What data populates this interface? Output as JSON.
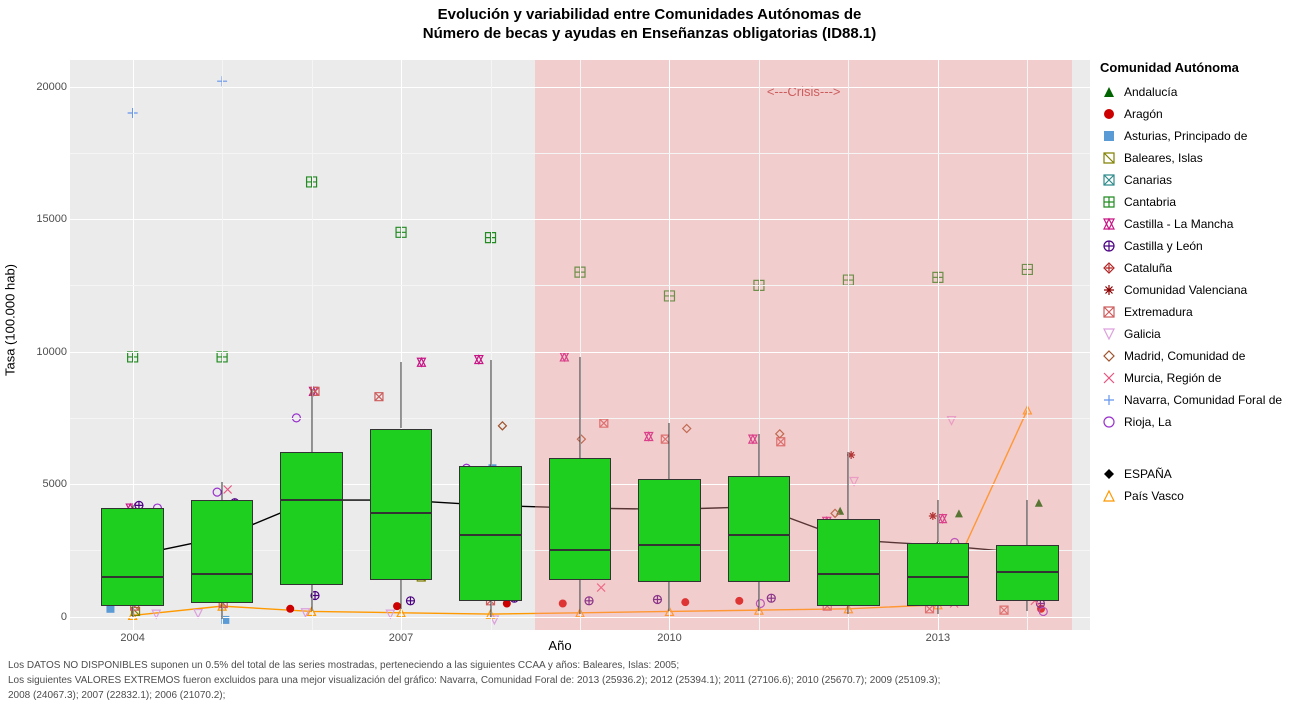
{
  "title_line1": "Evolución y variabilidad entre Comunidades Autónomas de",
  "title_line2": "Número de becas y ayudas en Enseñanzas obligatorias (ID88.1)",
  "y_axis_label": "Tasa (100.000 hab)",
  "x_axis_label": "Año",
  "chart": {
    "type": "boxplot",
    "background": "#ebebeb",
    "grid_major": "#ffffff",
    "grid_minor": "#f5f5f5",
    "ylim": [
      -500,
      21000
    ],
    "xlim": [
      2003.3,
      2014.7
    ],
    "y_ticks": [
      0,
      5000,
      10000,
      15000,
      20000
    ],
    "x_ticks": [
      2004,
      2007,
      2010,
      2013
    ],
    "box_fill": "#1fcf1f",
    "crisis_band": {
      "from": 2008.5,
      "to": 2014.5,
      "color": "rgba(255,150,150,0.35)",
      "label": "<---Crisis--->"
    },
    "years": [
      2004,
      2005,
      2006,
      2007,
      2008,
      2009,
      2010,
      2011,
      2012,
      2013,
      2014
    ],
    "boxes": [
      {
        "year": 2004,
        "q1": 400,
        "median": 1500,
        "q3": 4100,
        "wlo": 0,
        "whi": 4200
      },
      {
        "year": 2005,
        "q1": 500,
        "median": 1600,
        "q3": 4400,
        "wlo": -100,
        "whi": 5100
      },
      {
        "year": 2006,
        "q1": 1200,
        "median": 4400,
        "q3": 6200,
        "wlo": 200,
        "whi": 8600
      },
      {
        "year": 2007,
        "q1": 1400,
        "median": 3900,
        "q3": 7100,
        "wlo": 300,
        "whi": 9600
      },
      {
        "year": 2008,
        "q1": 600,
        "median": 3100,
        "q3": 5700,
        "wlo": 0,
        "whi": 9700
      },
      {
        "year": 2009,
        "q1": 1400,
        "median": 2500,
        "q3": 6000,
        "wlo": 100,
        "whi": 9800
      },
      {
        "year": 2010,
        "q1": 1300,
        "median": 2700,
        "q3": 5200,
        "wlo": 200,
        "whi": 7300
      },
      {
        "year": 2011,
        "q1": 1300,
        "median": 3100,
        "q3": 5300,
        "wlo": 200,
        "whi": 6900
      },
      {
        "year": 2012,
        "q1": 400,
        "median": 1600,
        "q3": 3700,
        "wlo": 100,
        "whi": 6200
      },
      {
        "year": 2013,
        "q1": 400,
        "median": 1500,
        "q3": 2800,
        "wlo": 100,
        "whi": 4400
      },
      {
        "year": 2014,
        "q1": 600,
        "median": 1700,
        "q3": 2700,
        "wlo": 200,
        "whi": 4400
      }
    ],
    "espana_line": {
      "color": "#000000",
      "points": [
        [
          2004,
          2300
        ],
        [
          2005,
          3000
        ],
        [
          2006,
          4400
        ],
        [
          2007,
          4400
        ],
        [
          2008,
          4200
        ],
        [
          2009,
          4100
        ],
        [
          2010,
          4050
        ],
        [
          2011,
          4150
        ],
        [
          2012,
          2900
        ],
        [
          2013,
          2700
        ],
        [
          2014,
          2400
        ]
      ]
    },
    "pais_vasco_line": {
      "color": "#ff9900",
      "points": [
        [
          2004,
          50
        ],
        [
          2005,
          400
        ],
        [
          2006,
          200
        ],
        [
          2007,
          150
        ],
        [
          2008,
          100
        ],
        [
          2009,
          150
        ],
        [
          2010,
          200
        ],
        [
          2011,
          250
        ],
        [
          2012,
          300
        ],
        [
          2013,
          450
        ],
        [
          2014,
          7800
        ]
      ]
    },
    "outliers_extra": [
      {
        "year": 2004,
        "y": 19000,
        "key": "navarra"
      },
      {
        "year": 2004,
        "y": 9800,
        "key": "cantabria"
      },
      {
        "year": 2005,
        "y": 20200,
        "key": "navarra"
      },
      {
        "year": 2005,
        "y": 9800,
        "key": "cantabria"
      },
      {
        "year": 2006,
        "y": 16400,
        "key": "cantabria"
      },
      {
        "year": 2007,
        "y": 14500,
        "key": "cantabria"
      },
      {
        "year": 2008,
        "y": 14300,
        "key": "cantabria"
      },
      {
        "year": 2009,
        "y": 13000,
        "key": "cantabria"
      },
      {
        "year": 2010,
        "y": 12100,
        "key": "cantabria"
      },
      {
        "year": 2011,
        "y": 12500,
        "key": "cantabria"
      },
      {
        "year": 2012,
        "y": 12700,
        "key": "cantabria"
      },
      {
        "year": 2013,
        "y": 12800,
        "key": "cantabria"
      },
      {
        "year": 2014,
        "y": 13100,
        "key": "cantabria"
      }
    ],
    "jitter_series": {
      "andalucia": [
        2300,
        2400,
        5800,
        6000,
        4700,
        4500,
        4600,
        4700,
        4000,
        3900,
        4300
      ],
      "aragon": [
        800,
        700,
        300,
        400,
        500,
        500,
        550,
        600,
        2200,
        700,
        300
      ],
      "asturias": [
        300,
        -120,
        4800,
        5800,
        5600,
        5700,
        2900,
        1800,
        1900,
        2000,
        1800
      ],
      "baleares": [
        200,
        null,
        1700,
        1500,
        1800,
        2300,
        2900,
        3000,
        1300,
        1200,
        900
      ],
      "canarias": [
        1800,
        1700,
        2200,
        2000,
        2400,
        2600,
        2700,
        2500,
        2300,
        2100,
        1900
      ],
      "clm": [
        4100,
        4200,
        8500,
        9600,
        9700,
        9800,
        6800,
        6700,
        3600,
        3700,
        1600
      ],
      "cyl": [
        4200,
        4300,
        800,
        600,
        700,
        600,
        650,
        700,
        750,
        800,
        500
      ],
      "cataluna": [
        1500,
        1600,
        2300,
        2500,
        2800,
        2600,
        2200,
        2100,
        1500,
        1400,
        1300
      ],
      "cvalenciana": [
        3500,
        3600,
        5000,
        5200,
        3500,
        3600,
        3200,
        3100,
        6100,
        3800,
        1700
      ],
      "extremadura": [
        400,
        500,
        8500,
        8300,
        600,
        7300,
        6700,
        6600,
        400,
        300,
        250
      ],
      "galicia": [
        100,
        120,
        150,
        100,
        -120,
        2300,
        2200,
        2100,
        5100,
        7400,
        1500
      ],
      "madrid": [
        3700,
        3800,
        5800,
        5700,
        7200,
        6700,
        7100,
        6900,
        3900,
        1500,
        1700
      ],
      "murcia": [
        3600,
        4800,
        4800,
        4700,
        1800,
        1100,
        1600,
        3200,
        3300,
        500,
        600
      ],
      "rioja": [
        4100,
        4700,
        7500,
        5800,
        5600,
        5300,
        4400,
        500,
        2700,
        2800,
        200
      ]
    }
  },
  "legend": {
    "title": "Comunidad Autónoma",
    "items": [
      {
        "key": "andalucia",
        "label": "Andalucía",
        "shape": "triangle-up-fill",
        "color": "#006400"
      },
      {
        "key": "aragon",
        "label": "Aragón",
        "shape": "circle-fill",
        "color": "#cc0000"
      },
      {
        "key": "asturias",
        "label": "Asturias, Principado de",
        "shape": "square-fill",
        "color": "#5b9bd5"
      },
      {
        "key": "baleares",
        "label": "Baleares, Islas",
        "shape": "square-open-diag",
        "color": "#808000"
      },
      {
        "key": "canarias",
        "label": "Canarias",
        "shape": "x-in-square",
        "color": "#2e8b8b"
      },
      {
        "key": "cantabria",
        "label": "Cantabria",
        "shape": "square-plus",
        "color": "#228b22"
      },
      {
        "key": "clm",
        "label": "Castilla - La Mancha",
        "shape": "star6",
        "color": "#c71585"
      },
      {
        "key": "cyl",
        "label": "Castilla y León",
        "shape": "circle-plus",
        "color": "#4b0082"
      },
      {
        "key": "cataluna",
        "label": "Cataluña",
        "shape": "diamond-plus",
        "color": "#b22222"
      },
      {
        "key": "cvalenciana",
        "label": "Comunidad Valenciana",
        "shape": "asterisk",
        "color": "#8b0000"
      },
      {
        "key": "extremadura",
        "label": "Extremadura",
        "shape": "square-x",
        "color": "#cd5c5c"
      },
      {
        "key": "galicia",
        "label": "Galicia",
        "shape": "triangle-down-open",
        "color": "#dda0dd"
      },
      {
        "key": "madrid",
        "label": "Madrid, Comunidad de",
        "shape": "diamond-open",
        "color": "#a0522d"
      },
      {
        "key": "murcia",
        "label": "Murcia, Región de",
        "shape": "x",
        "color": "#e75480"
      },
      {
        "key": "navarra",
        "label": "Navarra, Comunidad Foral de",
        "shape": "plus",
        "color": "#6495ed"
      },
      {
        "key": "rioja",
        "label": "Rioja, La",
        "shape": "circle-open",
        "color": "#9932cc"
      }
    ],
    "series_items": [
      {
        "key": "espana",
        "label": "ESPAÑA",
        "shape": "diamond-fill",
        "color": "#000000"
      },
      {
        "key": "paisvasco",
        "label": "País Vasco",
        "shape": "triangle-up-open",
        "color": "#ff9900"
      }
    ]
  },
  "footnotes": {
    "line1": "Los DATOS NO DISPONIBLES suponen un 0.5% del total de las series mostradas, perteneciendo a las siguientes CCAA y años: Baleares, Islas: 2005;",
    "line2": "Los siguientes VALORES EXTREMOS fueron excluidos para una mejor visualización del gráfico: Navarra, Comunidad Foral de: 2013 (25936.2); 2012 (25394.1); 2011 (27106.6); 2010 (25670.7); 2009 (25109.3);",
    "line3": " 2008 (24067.3); 2007 (22832.1); 2006 (21070.2);"
  }
}
